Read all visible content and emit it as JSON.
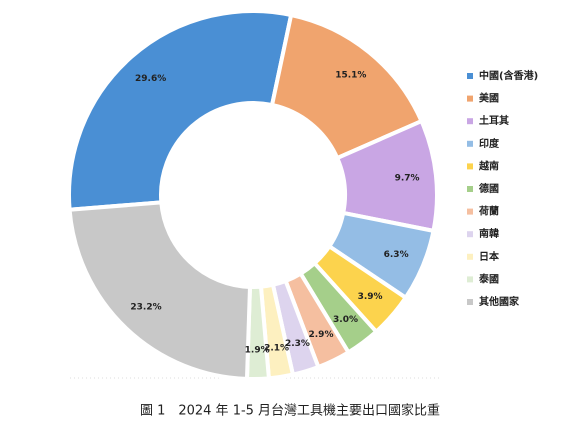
{
  "chart_data": {
    "type": "donut",
    "caption": "圖 1　2024 年 1-5 月台灣工具機主要出口國家比重",
    "categories": [
      "中國(含香港)",
      "美國",
      "土耳其",
      "印度",
      "越南",
      "德國",
      "荷蘭",
      "南韓",
      "日本",
      "泰國",
      "其他國家"
    ],
    "values": [
      29.6,
      15.1,
      9.7,
      6.3,
      3.9,
      3.0,
      2.9,
      2.3,
      2.1,
      1.9,
      23.2
    ],
    "value_labels": [
      "29.6%",
      "15.1%",
      "9.7%",
      "6.3%",
      "3.9%",
      "3.0%",
      "2.9%",
      "2.3%",
      "2.1%",
      "1.9%",
      "23.2%"
    ],
    "colors": [
      "#4a8fd4",
      "#f0a46e",
      "#c9a6e4",
      "#94bde5",
      "#fcd34d",
      "#a5cf8a",
      "#f5bfa0",
      "#ddd4ee",
      "#fdf0c0",
      "#deedd4",
      "#c8c8c8"
    ],
    "legend": "right"
  }
}
